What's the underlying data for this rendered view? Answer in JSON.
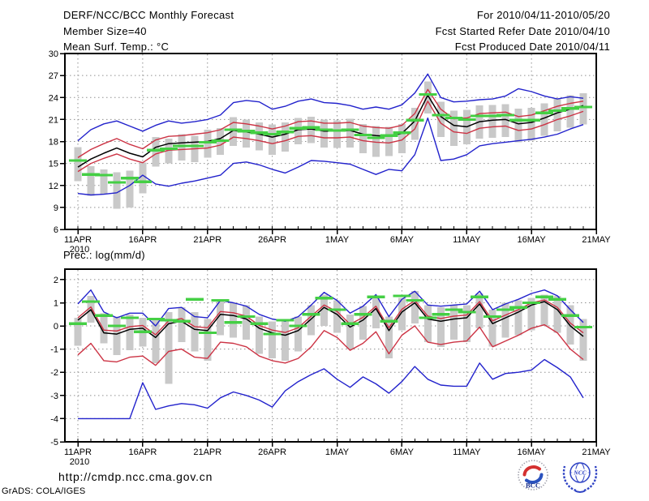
{
  "header": {
    "title": "DERF/NCC/BCC Monthly Forecast",
    "member_size": "Member Size=40",
    "for_range": "For 2010/04/11-2010/05/20",
    "fcst_started": "Fcst Started Refer Date 2010/04/10",
    "fcst_produced": "Fcst Produced Date 2010/04/11"
  },
  "footer": {
    "url": "http://cmdp.ncc.cma.gov.cn",
    "credit": "GrADS: COLA/IGES",
    "bcc_label": "BCC",
    "ncc_label": "NCC"
  },
  "colors": {
    "line_blue": "#2222cc",
    "line_red": "#cc3344",
    "line_black": "#000000",
    "obs_green": "#44cf44",
    "spread_gray": "#c9c9c9",
    "grid_gray": "#909090",
    "frame_black": "#000000"
  },
  "chart_data": [
    {
      "type": "line",
      "title": "Mean Surf. Temp.: °C",
      "ylabel": "",
      "ylim": [
        6,
        30
      ],
      "yticks": [
        6,
        9,
        12,
        15,
        18,
        21,
        24,
        27,
        30
      ],
      "grid": true,
      "x_axis": {
        "tick_labels": [
          "11APR",
          "16APR",
          "21APR",
          "26APR",
          "1MAY",
          "6MAY",
          "11MAY",
          "16MAY",
          "21MAY"
        ],
        "tick_days": [
          0,
          5,
          10,
          15,
          20,
          25,
          30,
          35,
          40
        ],
        "year_label": "2010",
        "total_days": 40
      },
      "series": [
        {
          "name": "blue-upper-max",
          "color": "#2222cc",
          "width": 1.4,
          "values": [
            18.1,
            19.6,
            20.4,
            20.8,
            20.1,
            19.4,
            20.2,
            20.8,
            20.5,
            20.7,
            21.0,
            21.6,
            23.3,
            23.6,
            23.4,
            22.4,
            22.8,
            23.5,
            23.8,
            23.3,
            23.2,
            22.9,
            22.4,
            22.7,
            22.4,
            23.0,
            24.6,
            27.2,
            24.0,
            23.4,
            23.5,
            23.7,
            23.8,
            24.2,
            25.2,
            24.8,
            24.2,
            23.8,
            24.1,
            23.9
          ]
        },
        {
          "name": "blue-lower-min",
          "color": "#2222cc",
          "width": 1.4,
          "values": [
            10.9,
            10.7,
            10.8,
            11.0,
            12.0,
            13.4,
            12.2,
            11.9,
            12.3,
            12.6,
            13.0,
            13.4,
            15.0,
            15.2,
            14.8,
            14.2,
            13.7,
            14.5,
            15.4,
            15.3,
            15.1,
            14.9,
            14.2,
            13.5,
            14.2,
            14.0,
            16.2,
            21.2,
            15.4,
            15.6,
            16.2,
            17.4,
            17.7,
            17.9,
            18.1,
            18.3,
            18.6,
            19.0,
            19.7,
            20.3
          ]
        },
        {
          "name": "red-upper",
          "color": "#cc3344",
          "width": 1.4,
          "values": [
            15.8,
            16.9,
            17.7,
            18.4,
            17.6,
            17.0,
            18.2,
            18.7,
            18.8,
            19.0,
            19.2,
            19.6,
            20.6,
            20.4,
            20.1,
            19.7,
            20.1,
            20.7,
            20.8,
            20.5,
            20.5,
            20.6,
            20.1,
            19.9,
            19.8,
            20.2,
            21.8,
            25.1,
            22.4,
            21.1,
            21.2,
            21.8,
            21.9,
            22.0,
            21.4,
            21.6,
            22.2,
            22.8,
            23.2,
            23.5
          ]
        },
        {
          "name": "red-lower",
          "color": "#cc3344",
          "width": 1.4,
          "values": [
            13.9,
            15.0,
            15.7,
            16.3,
            15.6,
            15.1,
            16.3,
            16.8,
            16.9,
            17.0,
            17.1,
            17.5,
            18.6,
            18.4,
            18.1,
            17.7,
            18.1,
            18.7,
            18.8,
            18.5,
            18.5,
            18.6,
            18.1,
            17.9,
            17.8,
            18.2,
            19.7,
            23.5,
            20.5,
            19.3,
            19.1,
            19.8,
            20.0,
            20.1,
            19.5,
            19.7,
            20.3,
            21.0,
            21.5,
            22.1
          ]
        },
        {
          "name": "black-ensemble-mean",
          "color": "#000000",
          "width": 1.5,
          "values": [
            14.5,
            15.6,
            16.4,
            17.1,
            16.4,
            15.9,
            17.2,
            17.7,
            17.8,
            17.9,
            18.0,
            18.4,
            19.5,
            19.3,
            19.0,
            18.6,
            19.0,
            19.6,
            19.7,
            19.4,
            19.4,
            19.5,
            19.0,
            18.8,
            18.7,
            19.1,
            20.8,
            24.3,
            21.4,
            20.2,
            20.0,
            20.7,
            20.9,
            21.0,
            20.4,
            20.6,
            21.2,
            21.9,
            22.4,
            22.9
          ]
        }
      ],
      "spread_bars": {
        "name": "member-spread-bar",
        "color": "#c9c9c9",
        "lo": [
          12.6,
          10.6,
          10.8,
          8.8,
          9.0,
          10.9,
          14.6,
          15.0,
          15.4,
          15.2,
          15.8,
          16.2,
          17.4,
          17.2,
          16.8,
          16.2,
          16.6,
          17.6,
          17.8,
          17.2,
          17.1,
          17.2,
          16.4,
          15.9,
          16.0,
          16.4,
          18.2,
          21.8,
          18.6,
          17.4,
          17.6,
          18.4,
          18.5,
          18.6,
          17.9,
          18.1,
          18.8,
          19.4,
          19.9,
          20.3
        ],
        "hi": [
          17.2,
          14.6,
          14.2,
          13.8,
          14.0,
          15.1,
          18.6,
          18.4,
          19.0,
          18.8,
          19.6,
          19.8,
          21.3,
          21.0,
          20.6,
          20.3,
          20.6,
          21.2,
          21.4,
          21.0,
          20.9,
          21.1,
          20.4,
          20.1,
          20.0,
          20.4,
          22.6,
          26.2,
          23.4,
          22.2,
          22.3,
          22.9,
          23.0,
          23.1,
          22.5,
          22.6,
          23.2,
          23.8,
          24.3,
          24.6
        ]
      },
      "obs_dashes": {
        "name": "green-dash",
        "color": "#44cf44",
        "values": [
          15.4,
          13.5,
          13.4,
          12.4,
          13.0,
          12.5,
          16.8,
          17.0,
          17.4,
          17.4,
          17.9,
          18.1,
          19.6,
          19.4,
          19.2,
          19.0,
          19.3,
          19.8,
          19.9,
          19.6,
          19.5,
          19.6,
          18.9,
          18.5,
          18.8,
          19.2,
          20.9,
          24.4,
          21.6,
          21.2,
          21.0,
          21.5,
          21.5,
          21.6,
          20.9,
          20.9,
          21.9,
          22.2,
          22.5,
          22.7
        ]
      }
    },
    {
      "type": "line",
      "title": "Prec.: log(mm/d)",
      "ylabel": "",
      "ylim": [
        -5,
        2.45
      ],
      "yticks": [
        -5,
        -4,
        -3,
        -2,
        -1,
        0,
        1,
        2
      ],
      "grid": true,
      "x_axis": {
        "tick_labels": [
          "11APR",
          "16APR",
          "21APR",
          "26APR",
          "1MAY",
          "6MAY",
          "11MAY",
          "16MAY",
          "21MAY"
        ],
        "tick_days": [
          0,
          5,
          10,
          15,
          20,
          25,
          30,
          35,
          40
        ],
        "year_label": "2010",
        "total_days": 40
      },
      "series": [
        {
          "name": "blue-upper-max",
          "color": "#2222cc",
          "width": 1.4,
          "values": [
            0.95,
            1.55,
            0.6,
            0.35,
            0.55,
            0.55,
            0.0,
            0.75,
            0.8,
            0.4,
            0.35,
            1.1,
            1.0,
            0.85,
            0.5,
            0.3,
            0.2,
            0.4,
            0.9,
            1.45,
            1.1,
            0.55,
            0.85,
            1.35,
            0.4,
            1.15,
            1.5,
            0.9,
            0.85,
            0.9,
            0.95,
            1.5,
            0.7,
            0.95,
            1.15,
            1.4,
            1.55,
            1.3,
            0.7,
            0.15
          ]
        },
        {
          "name": "blue-lower-min",
          "color": "#2222cc",
          "width": 1.4,
          "values": [
            -4.0,
            -4.0,
            -4.0,
            -4.0,
            -4.0,
            -2.45,
            -3.6,
            -3.45,
            -3.35,
            -3.4,
            -3.55,
            -3.1,
            -2.85,
            -3.0,
            -3.2,
            -3.5,
            -2.8,
            -2.4,
            -2.1,
            -1.85,
            -2.3,
            -2.65,
            -2.2,
            -2.5,
            -2.9,
            -2.4,
            -1.75,
            -2.3,
            -2.55,
            -2.6,
            -2.6,
            -1.6,
            -2.3,
            -2.05,
            -2.0,
            -1.9,
            -1.45,
            -1.8,
            -2.2,
            -3.1
          ]
        },
        {
          "name": "red-upper",
          "color": "#cc3344",
          "width": 1.4,
          "values": [
            0.35,
            0.82,
            -0.18,
            -0.22,
            -0.03,
            0.02,
            -0.38,
            0.22,
            0.32,
            -0.03,
            -0.08,
            0.62,
            0.57,
            0.42,
            0.02,
            -0.18,
            -0.28,
            -0.08,
            0.42,
            0.9,
            0.62,
            0.07,
            0.37,
            0.85,
            -0.08,
            0.72,
            1.1,
            0.42,
            0.32,
            0.42,
            0.47,
            1.05,
            0.22,
            0.47,
            0.7,
            1.0,
            1.12,
            0.8,
            0.12,
            -0.3
          ]
        },
        {
          "name": "red-lower",
          "color": "#cc3344",
          "width": 1.4,
          "values": [
            -1.25,
            -0.75,
            -1.5,
            -1.55,
            -1.35,
            -1.3,
            -1.7,
            -1.1,
            -1.0,
            -1.35,
            -1.4,
            -0.7,
            -0.75,
            -0.9,
            -1.3,
            -1.5,
            -1.6,
            -1.4,
            -0.9,
            -0.2,
            -0.5,
            -1.05,
            -0.75,
            -0.25,
            -1.2,
            -0.4,
            0.0,
            -0.7,
            -0.8,
            -0.7,
            -0.65,
            -0.05,
            -0.9,
            -0.65,
            -0.4,
            -0.1,
            0.05,
            -0.3,
            -1.0,
            -1.45
          ]
        },
        {
          "name": "black-ensemble-mean",
          "color": "#000000",
          "width": 1.5,
          "values": [
            0.25,
            0.7,
            -0.3,
            -0.35,
            -0.15,
            -0.1,
            -0.5,
            0.1,
            0.2,
            -0.15,
            -0.2,
            0.5,
            0.45,
            0.3,
            -0.1,
            -0.3,
            -0.4,
            -0.2,
            0.3,
            0.8,
            0.5,
            -0.05,
            0.25,
            0.75,
            -0.2,
            0.6,
            1.0,
            0.3,
            0.2,
            0.3,
            0.35,
            0.95,
            0.1,
            0.35,
            0.6,
            0.9,
            1.05,
            0.7,
            0.0,
            -0.45
          ]
        }
      ],
      "spread_bars": {
        "name": "member-spread-bar",
        "color": "#c9c9c9",
        "lo": [
          -0.85,
          0.15,
          -0.75,
          -1.25,
          -1.05,
          -0.9,
          -1.6,
          -2.5,
          -0.7,
          -1.1,
          -1.5,
          -0.4,
          -0.5,
          -0.6,
          -1.2,
          -1.4,
          -1.5,
          -1.1,
          -0.4,
          0.0,
          -0.3,
          -1.0,
          -0.6,
          -0.1,
          -1.4,
          -0.2,
          0.1,
          -0.7,
          -0.9,
          -0.6,
          -0.7,
          -0.1,
          -0.9,
          -0.5,
          -0.4,
          -0.2,
          0.0,
          -0.3,
          -0.8,
          -1.5
        ],
        "hi": [
          0.35,
          1.3,
          0.55,
          0.4,
          0.5,
          0.35,
          0.3,
          0.6,
          0.8,
          0.6,
          0.3,
          1.1,
          1.0,
          0.9,
          0.4,
          0.2,
          0.2,
          0.4,
          0.9,
          1.35,
          1.1,
          0.5,
          0.85,
          1.3,
          0.4,
          1.2,
          1.5,
          0.9,
          0.8,
          0.9,
          0.9,
          1.4,
          0.7,
          1.0,
          1.1,
          1.2,
          1.35,
          1.3,
          0.9,
          0.3
        ]
      },
      "obs_dashes": {
        "name": "green-dash",
        "color": "#44cf44",
        "values": [
          0.1,
          1.05,
          0.45,
          0.0,
          0.35,
          -0.25,
          0.3,
          0.25,
          0.2,
          1.15,
          -0.3,
          1.1,
          0.15,
          0.4,
          0.1,
          -0.35,
          0.25,
          0.0,
          0.5,
          1.2,
          0.7,
          0.1,
          0.5,
          1.25,
          0.2,
          1.3,
          1.1,
          0.35,
          0.5,
          0.7,
          0.6,
          1.25,
          0.4,
          0.7,
          0.8,
          1.0,
          1.25,
          1.15,
          0.45,
          -0.05
        ]
      }
    }
  ]
}
